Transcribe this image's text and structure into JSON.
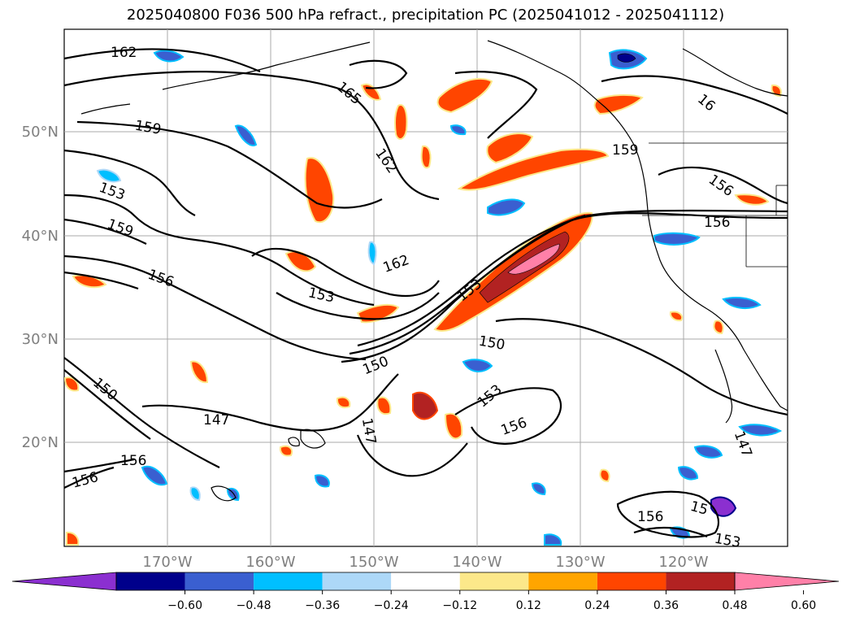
{
  "title": "2025040800 F036 500 hPa refract., precipitation PC (2025041012 - 2025041112)",
  "lat_labels": [
    "50°N",
    "40°N",
    "30°N",
    "20°N"
  ],
  "lon_labels": [
    "170°W",
    "160°W",
    "150°W",
    "140°W",
    "130°W",
    "120°W"
  ],
  "contour_labels": [
    "162",
    "165",
    "159",
    "162",
    "153",
    "159",
    "156",
    "162",
    "153",
    "153",
    "150",
    "150",
    "150",
    "147",
    "147",
    "153",
    "156",
    "156",
    "156",
    "159",
    "156",
    "147",
    "156",
    "153",
    "15",
    "156",
    "16"
  ],
  "colorbar": {
    "ticks": [
      "−0.60",
      "−0.48",
      "−0.36",
      "−0.24",
      "−0.12",
      "0.12",
      "0.24",
      "0.36",
      "0.48",
      "0.60"
    ],
    "colors": [
      "#8b2fd0",
      "#00008b",
      "#3a5fd0",
      "#00bfff",
      "#add8f8",
      "#ffffff",
      "#fce88a",
      "#ffa500",
      "#ff4500",
      "#b22222",
      "#ff80a8"
    ]
  }
}
